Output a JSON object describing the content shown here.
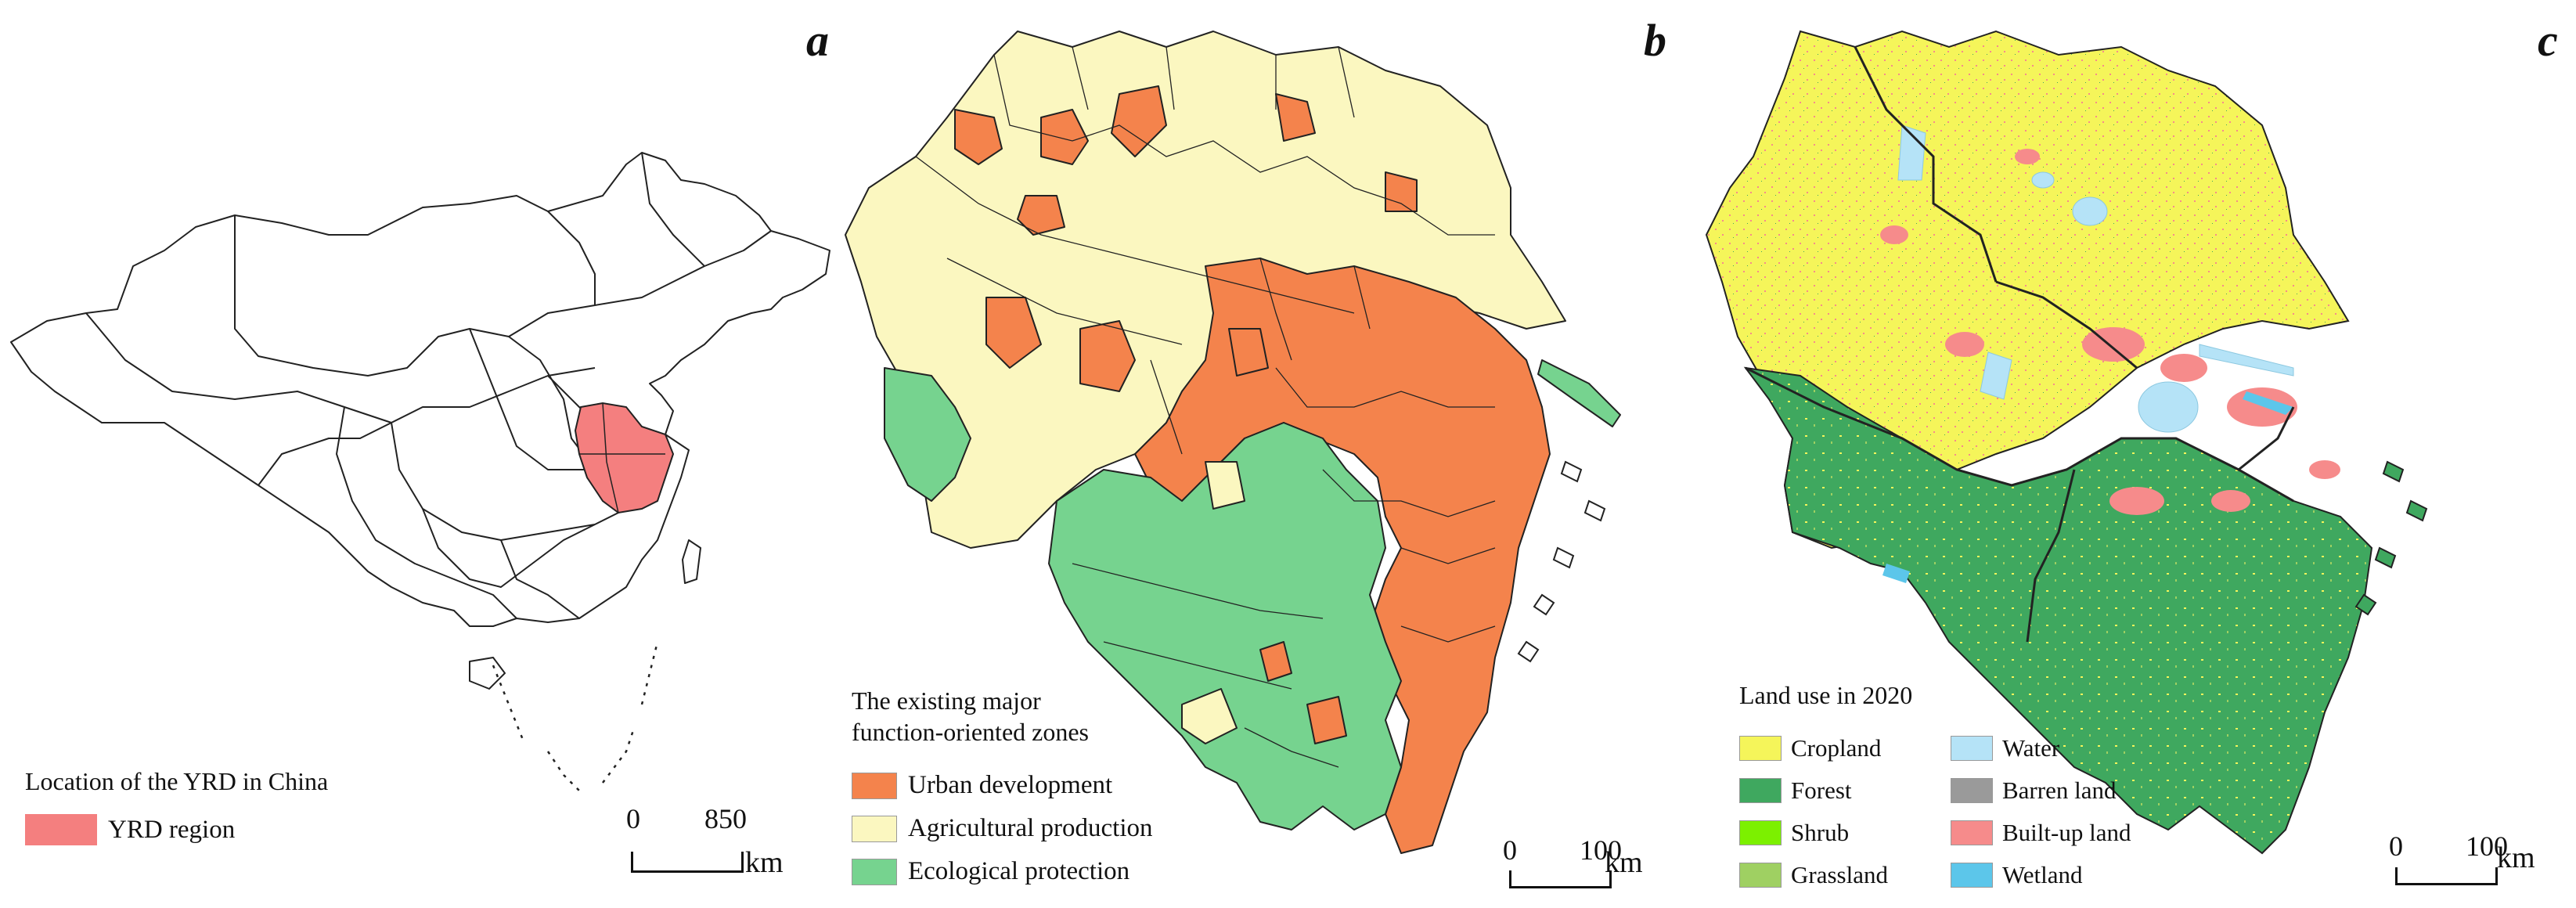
{
  "figure": {
    "panels": [
      {
        "letter": "a",
        "legend_title": "Location of the YRD in China",
        "legend_items": [
          {
            "label": "YRD region",
            "color": "#f47f7f"
          }
        ],
        "scale": {
          "start": "0",
          "end": "850",
          "unit": "km"
        }
      },
      {
        "letter": "b",
        "legend_title_line1": "The existing major",
        "legend_title_line2": "function-oriented zones",
        "legend_items": [
          {
            "label": "Urban development",
            "color": "#f4834c"
          },
          {
            "label": "Agricultural production",
            "color": "#fbf7c0"
          },
          {
            "label": "Ecological protection",
            "color": "#76d38f"
          }
        ],
        "scale": {
          "start": "0",
          "end": "100",
          "unit": "km"
        }
      },
      {
        "letter": "c",
        "legend_title": "Land use in 2020",
        "legend_items_left": [
          {
            "label": "Cropland",
            "color": "#f5f55a"
          },
          {
            "label": "Forest",
            "color": "#3fa85f"
          },
          {
            "label": "Shrub",
            "color": "#7cf000"
          },
          {
            "label": "Grassland",
            "color": "#9fd062"
          }
        ],
        "legend_items_right": [
          {
            "label": "Water",
            "color": "#b5e3f7"
          },
          {
            "label": "Barren land",
            "color": "#9a9a9a"
          },
          {
            "label": "Built-up land",
            "color": "#f68b8b"
          },
          {
            "label": "Wetland",
            "color": "#5cc6ea"
          }
        ],
        "scale": {
          "start": "0",
          "end": "100",
          "unit": "km"
        }
      }
    ]
  }
}
